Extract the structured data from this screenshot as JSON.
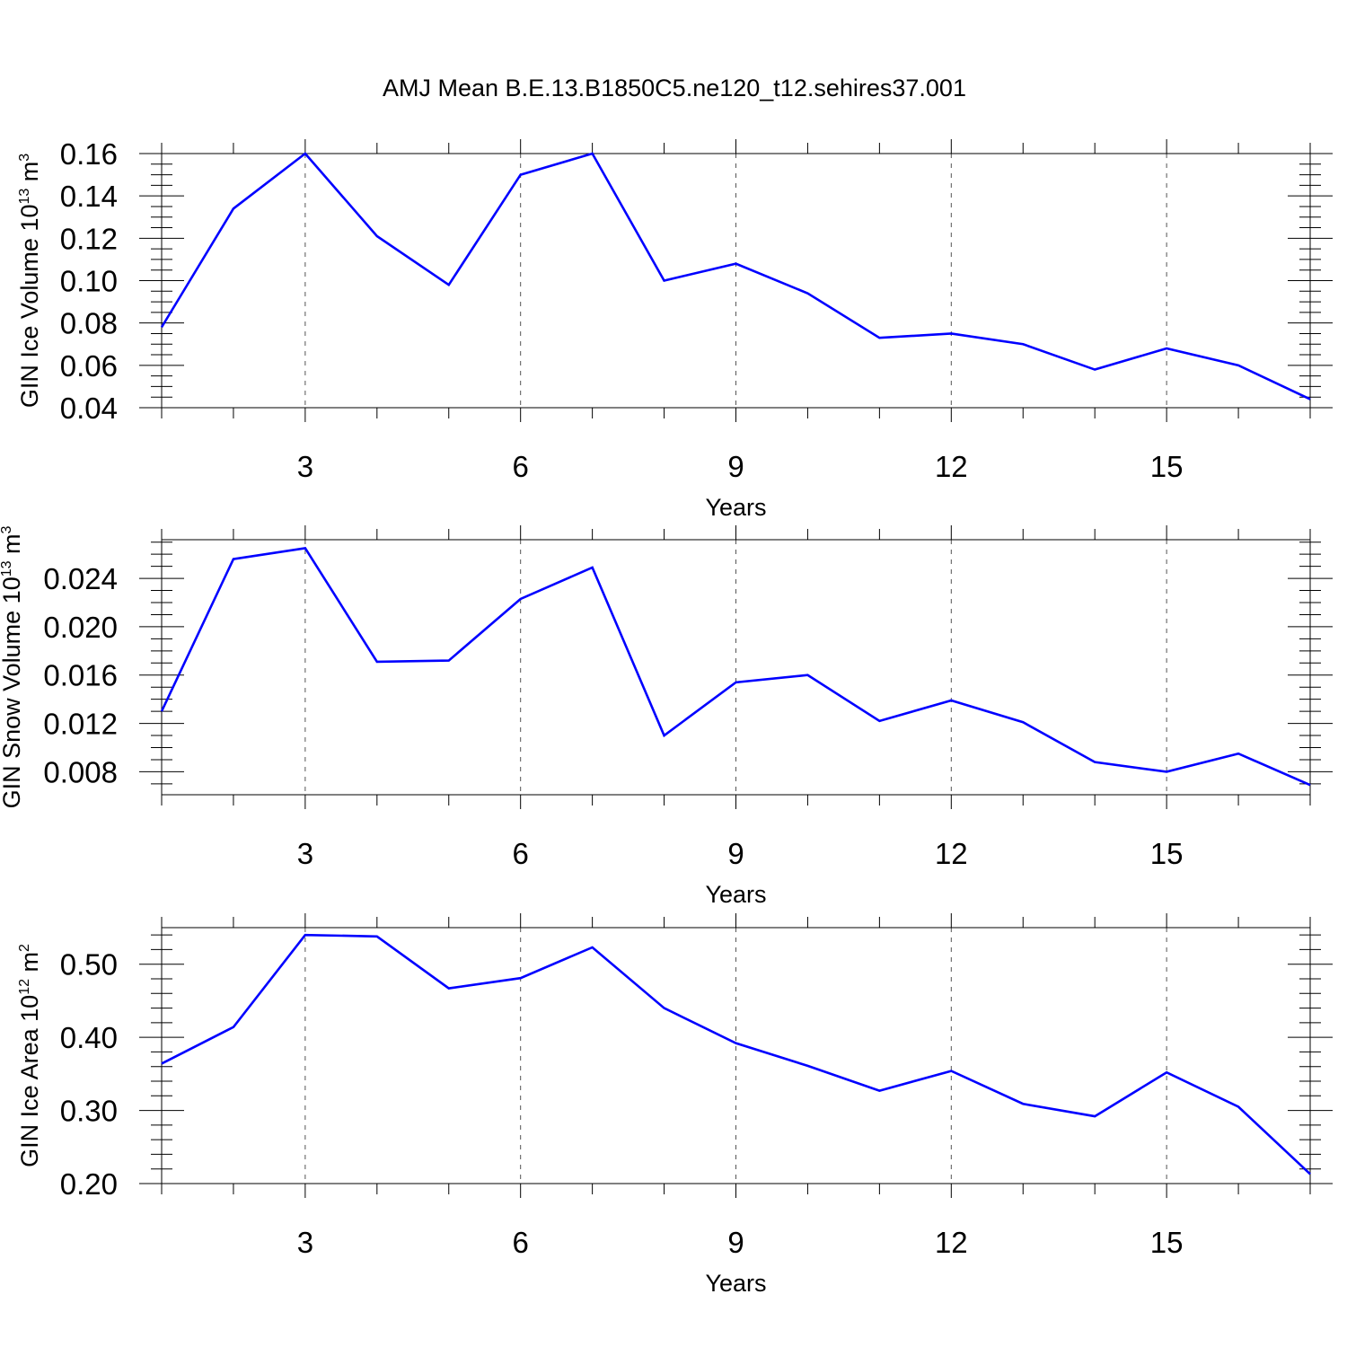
{
  "title": "AMJ Mean B.E.13.B1850C5.ne120_t12.sehires37.001",
  "colors": {
    "series": "#0000ff",
    "frame": "#000000",
    "grid": "#555555"
  },
  "chart_data": [
    {
      "type": "line",
      "ylabel_main": "GIN Ice Volume 10",
      "ylabel_exp1": "13",
      "ylabel_unit": " m",
      "ylabel_exp2": "3",
      "xlabel": "Years",
      "xlim": [
        1,
        17
      ],
      "ylim": [
        0.04,
        0.16
      ],
      "xticks": [
        3,
        6,
        9,
        12,
        15
      ],
      "xtick_labels": [
        "3",
        "6",
        "9",
        "12",
        "15"
      ],
      "yticks": [
        0.04,
        0.06,
        0.08,
        0.1,
        0.12,
        0.14,
        0.16
      ],
      "ytick_labels": [
        "0.04",
        "0.06",
        "0.08",
        "0.10",
        "0.12",
        "0.14",
        "0.16"
      ],
      "y_minor_step": 0.005,
      "grid": "vertical dashed at major x ticks",
      "x": [
        1,
        2,
        3,
        4,
        5,
        6,
        7,
        8,
        9,
        10,
        11,
        12,
        13,
        14,
        15,
        16,
        17
      ],
      "y": [
        0.078,
        0.134,
        0.16,
        0.121,
        0.098,
        0.15,
        0.16,
        0.1,
        0.108,
        0.094,
        0.073,
        0.075,
        0.07,
        0.058,
        0.068,
        0.06,
        0.044
      ]
    },
    {
      "type": "line",
      "ylabel_main": "GIN Snow Volume 10",
      "ylabel_exp1": "13",
      "ylabel_unit": " m",
      "ylabel_exp2": "3",
      "xlabel": "Years",
      "xlim": [
        1,
        17
      ],
      "ylim": [
        0.0061,
        0.0272
      ],
      "xticks": [
        3,
        6,
        9,
        12,
        15
      ],
      "xtick_labels": [
        "3",
        "6",
        "9",
        "12",
        "15"
      ],
      "yticks": [
        0.008,
        0.012,
        0.016,
        0.02,
        0.024
      ],
      "ytick_labels": [
        "0.008",
        "0.012",
        "0.016",
        "0.020",
        "0.024"
      ],
      "y_minor_step": 0.001,
      "grid": "vertical dashed at major x ticks",
      "x": [
        1,
        2,
        3,
        4,
        5,
        6,
        7,
        8,
        9,
        10,
        11,
        12,
        13,
        14,
        15,
        16,
        17
      ],
      "y": [
        0.013,
        0.0256,
        0.0265,
        0.0171,
        0.0172,
        0.0223,
        0.0249,
        0.011,
        0.0154,
        0.016,
        0.0122,
        0.0139,
        0.0121,
        0.0088,
        0.008,
        0.0095,
        0.0069
      ]
    },
    {
      "type": "line",
      "ylabel_main": "GIN Ice Area 10",
      "ylabel_exp1": "12",
      "ylabel_unit": " m",
      "ylabel_exp2": "2",
      "xlabel": "Years",
      "xlim": [
        1,
        17
      ],
      "ylim": [
        0.2,
        0.55
      ],
      "xticks": [
        3,
        6,
        9,
        12,
        15
      ],
      "xtick_labels": [
        "3",
        "6",
        "9",
        "12",
        "15"
      ],
      "yticks": [
        0.2,
        0.3,
        0.4,
        0.5
      ],
      "ytick_labels": [
        "0.20",
        "0.30",
        "0.40",
        "0.50"
      ],
      "y_minor_step": 0.02,
      "grid": "vertical dashed at major x ticks",
      "x": [
        1,
        2,
        3,
        4,
        5,
        6,
        7,
        8,
        9,
        10,
        11,
        12,
        13,
        14,
        15,
        16,
        17
      ],
      "y": [
        0.364,
        0.414,
        0.54,
        0.538,
        0.467,
        0.481,
        0.523,
        0.44,
        0.392,
        0.361,
        0.327,
        0.354,
        0.309,
        0.292,
        0.352,
        0.305,
        0.213
      ]
    }
  ]
}
